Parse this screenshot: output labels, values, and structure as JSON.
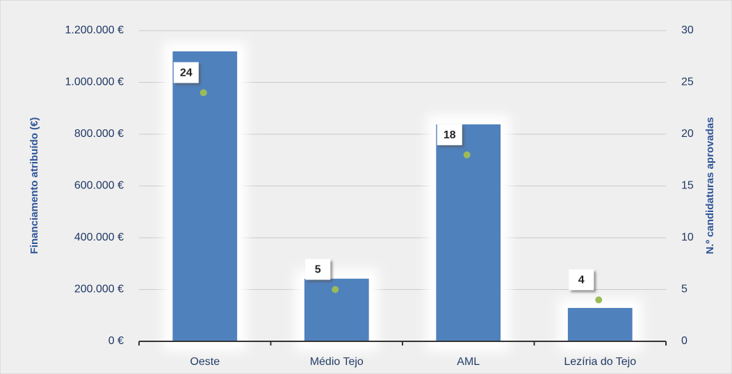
{
  "chart_data": {
    "type": "bar",
    "categories": [
      "Oeste",
      "Médio Tejo",
      "AML",
      "Lezíria do Tejo"
    ],
    "series": [
      {
        "color": "#4f81bd",
        "values": [
          1120000,
          242000,
          838000,
          129000
        ]
      },
      {
        "color": "#9bbb59",
        "axis": "y2",
        "values": [
          24,
          5,
          18,
          4
        ]
      }
    ],
    "ylabel": "Financiamento atribuído (€)",
    "y2label": "N.º candidaturas aprovadas",
    "ylim": [
      0,
      1200000
    ],
    "yticks": [
      {
        "value": 0,
        "label": "0 €"
      },
      {
        "value": 200000,
        "label": "200.000 €"
      },
      {
        "value": 400000,
        "label": "400.000 €"
      },
      {
        "value": 600000,
        "label": "600.000 €"
      },
      {
        "value": 800000,
        "label": "800.000 €"
      },
      {
        "value": 1000000,
        "label": "1.000.000 €"
      },
      {
        "value": 1200000,
        "label": "1.200.000 €"
      }
    ],
    "y2lim": [
      0,
      30
    ],
    "y2ticks": [
      0,
      5,
      10,
      15,
      20,
      25,
      30
    ],
    "grid": true
  }
}
